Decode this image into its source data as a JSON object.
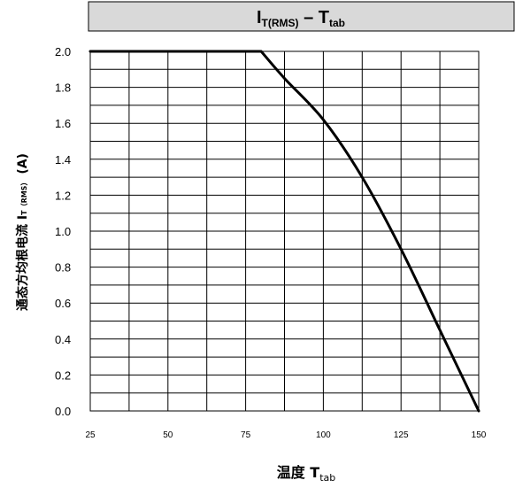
{
  "chart_data": {
    "type": "line",
    "title": {
      "main": "I",
      "main_sub": "T(RMS)",
      "sep": " – ",
      "second": "T",
      "second_sub": "tab"
    },
    "xlabel": {
      "main": "温度 T",
      "sub": "tab"
    },
    "ylabel": {
      "main": "通态方均根电流 I",
      "sub": "T（RMS）",
      "tail": " (A)"
    },
    "xlim": [
      25,
      150
    ],
    "ylim": [
      0,
      2.0
    ],
    "x_ticks": [
      "25",
      "50",
      "75",
      "100",
      "125",
      "150"
    ],
    "y_ticks": [
      "0.0",
      "0.2",
      "0.4",
      "0.6",
      "0.8",
      "1.0",
      "1.2",
      "1.4",
      "1.6",
      "1.8",
      "2.0"
    ],
    "grid": true,
    "series": [
      {
        "x": [
          25,
          80,
          87.5,
          100,
          112.5,
          125,
          137.5,
          150
        ],
        "y": [
          2.0,
          2.0,
          1.85,
          1.62,
          1.3,
          0.9,
          0.45,
          0.0
        ]
      }
    ]
  }
}
